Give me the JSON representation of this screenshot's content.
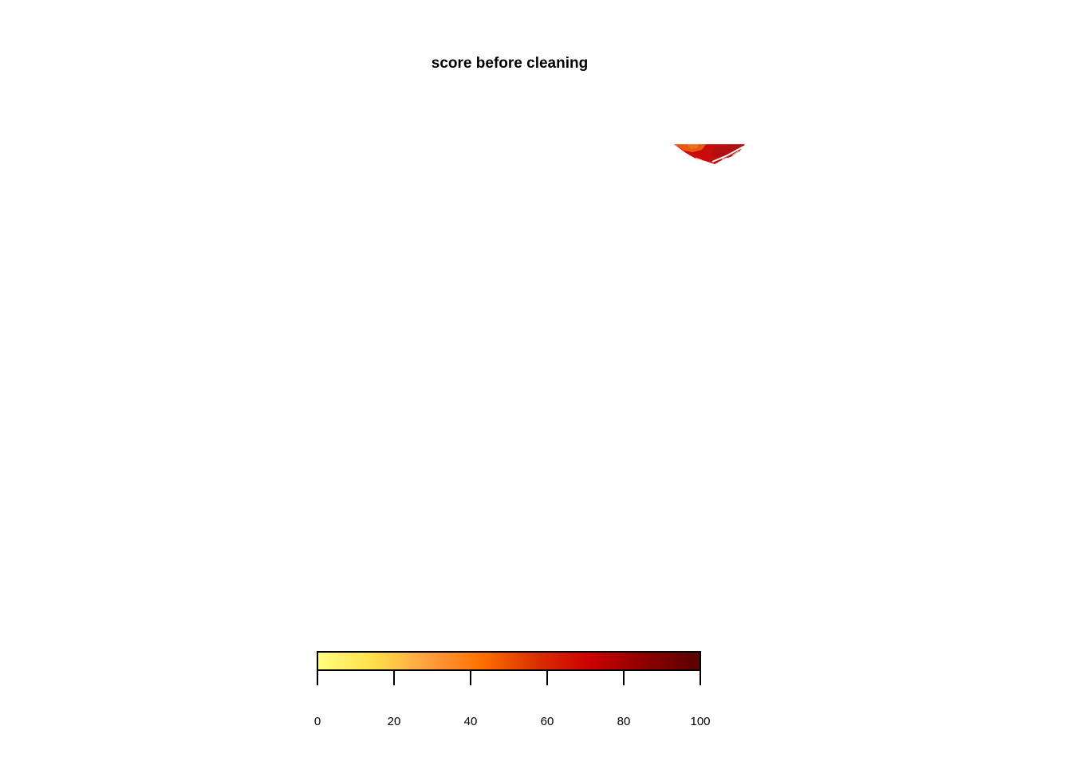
{
  "chart_data": {
    "type": "heatmap",
    "title": "score before cleaning",
    "xlabel": "",
    "ylabel": "",
    "grid": false,
    "legend": "bottom",
    "color_scale": {
      "range": [
        0,
        100
      ],
      "ticks": [
        0,
        20,
        40,
        60,
        80,
        100
      ],
      "tick_labels": [
        "0",
        "20",
        "40",
        "60",
        "80",
        "100"
      ],
      "colors": [
        "#FFFF80",
        "#FFE14A",
        "#FFA040",
        "#FF7000",
        "#D93000",
        "#CC0000",
        "#8C0000",
        "#5A0000"
      ]
    },
    "region": {
      "dominant_value": 82,
      "secondary_values": [
        62,
        70
      ],
      "colors": [
        "#C80C0C",
        "#E85A10",
        "#EE7418",
        "#B01010"
      ]
    }
  }
}
